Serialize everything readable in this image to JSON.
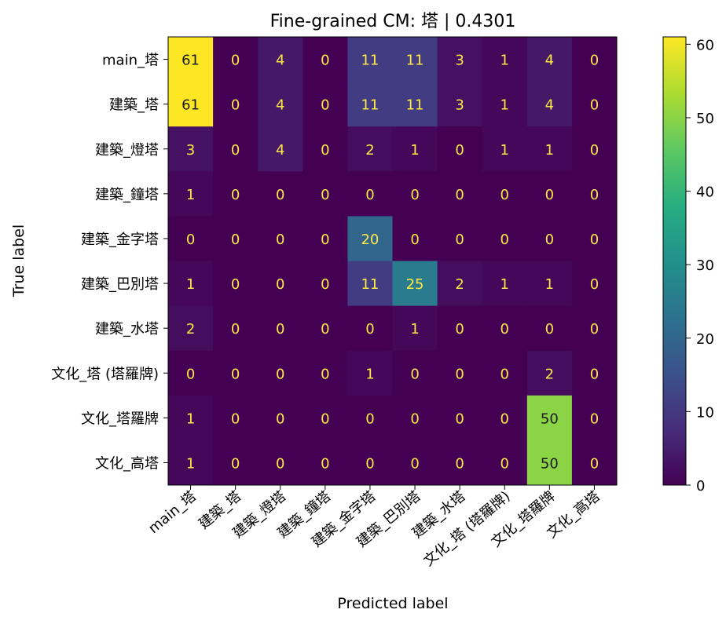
{
  "chart_data": {
    "type": "heatmap",
    "title": "Fine-grained CM: 塔 | 0.4301",
    "xlabel": "Predicted label",
    "ylabel": "True label",
    "x_categories": [
      "main_塔",
      "建築_塔",
      "建築_燈塔",
      "建築_鐘塔",
      "建築_金字塔",
      "建築_巴別塔",
      "建築_水塔",
      "文化_塔 (塔羅牌)",
      "文化_塔羅牌",
      "文化_高塔"
    ],
    "y_categories": [
      "main_塔",
      "建築_塔",
      "建築_燈塔",
      "建築_鐘塔",
      "建築_金字塔",
      "建築_巴別塔",
      "建築_水塔",
      "文化_塔 (塔羅牌)",
      "文化_塔羅牌",
      "文化_高塔"
    ],
    "values": [
      [
        61,
        0,
        4,
        0,
        11,
        11,
        3,
        1,
        4,
        0
      ],
      [
        61,
        0,
        4,
        0,
        11,
        11,
        3,
        1,
        4,
        0
      ],
      [
        3,
        0,
        4,
        0,
        2,
        1,
        0,
        1,
        1,
        0
      ],
      [
        1,
        0,
        0,
        0,
        0,
        0,
        0,
        0,
        0,
        0
      ],
      [
        0,
        0,
        0,
        0,
        20,
        0,
        0,
        0,
        0,
        0
      ],
      [
        1,
        0,
        0,
        0,
        11,
        25,
        2,
        1,
        1,
        0
      ],
      [
        2,
        0,
        0,
        0,
        0,
        1,
        0,
        0,
        0,
        0
      ],
      [
        0,
        0,
        0,
        0,
        1,
        0,
        0,
        0,
        2,
        0
      ],
      [
        1,
        0,
        0,
        0,
        0,
        0,
        0,
        0,
        50,
        0
      ],
      [
        1,
        0,
        0,
        0,
        0,
        0,
        0,
        0,
        50,
        0
      ]
    ],
    "colormap": "viridis",
    "vmin": 0,
    "vmax": 61,
    "colorbar_ticks": [
      0,
      10,
      20,
      30,
      40,
      50,
      60
    ],
    "text_color_low": "#ffe945",
    "text_color_high": "#1a1a1a",
    "grid": false
  }
}
